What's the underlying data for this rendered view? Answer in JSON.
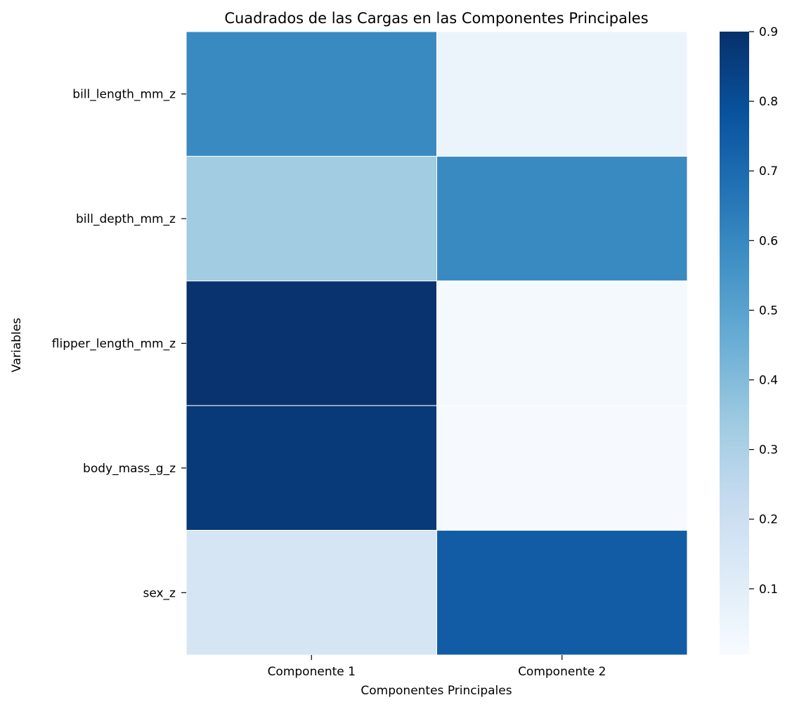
{
  "chart_data": {
    "type": "heatmap",
    "title": "Cuadrados de las Cargas en las Componentes Principales",
    "xlabel": "Componentes Principales",
    "ylabel": "Variables",
    "x_categories": [
      "Componente 1",
      "Componente 2"
    ],
    "y_categories": [
      "bill_length_mm_z",
      "bill_depth_mm_z",
      "flipper_length_mm_z",
      "body_mass_g_z",
      "sex_z"
    ],
    "values": [
      [
        0.59,
        0.06
      ],
      [
        0.33,
        0.59
      ],
      [
        0.89,
        0.02
      ],
      [
        0.87,
        0.01
      ],
      [
        0.16,
        0.75
      ]
    ],
    "colormap": "Blues",
    "colorbar": {
      "range": [
        0.005,
        0.9
      ],
      "ticks": [
        0.1,
        0.2,
        0.3,
        0.4,
        0.5,
        0.6,
        0.7,
        0.8,
        0.9
      ],
      "tick_labels": [
        "0.1",
        "0.2",
        "0.3",
        "0.4",
        "0.5",
        "0.6",
        "0.7",
        "0.8",
        "0.9"
      ]
    },
    "colors": {
      "cell_border": "#ffffff",
      "text": "#000000"
    }
  }
}
